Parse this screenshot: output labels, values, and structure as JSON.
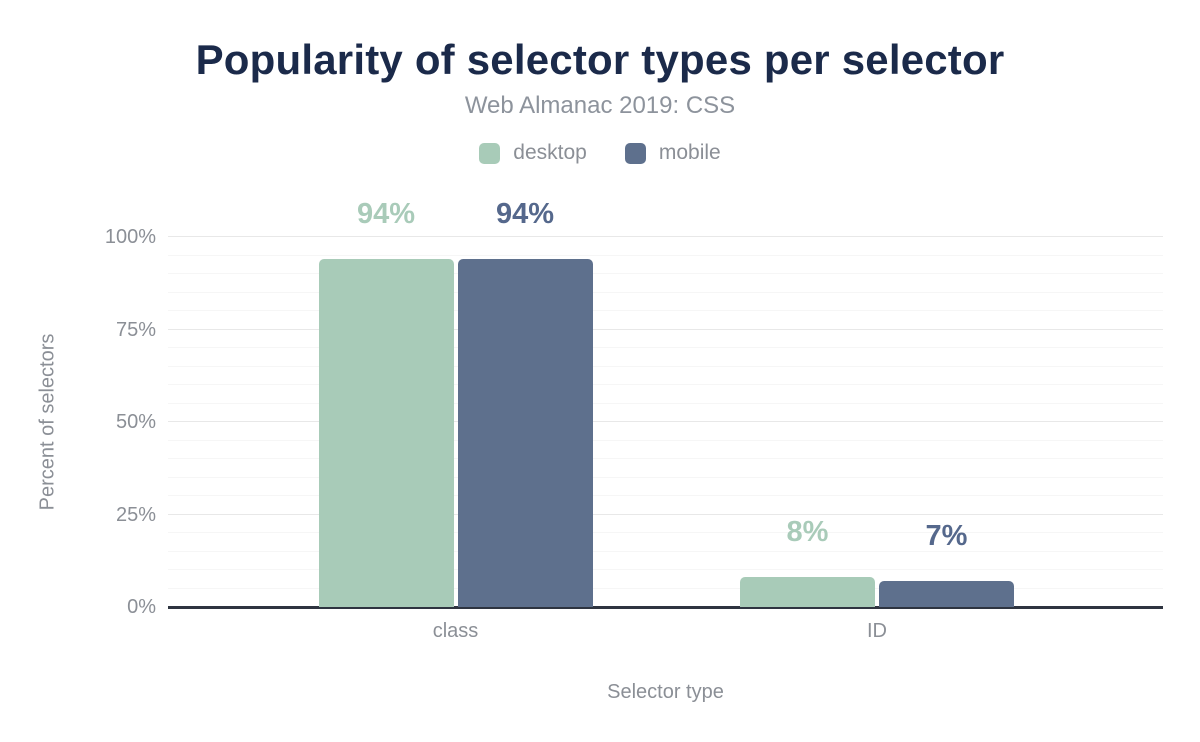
{
  "chart_data": {
    "type": "bar",
    "title": "Popularity of selector types per selector",
    "subtitle": "Web Almanac 2019: CSS",
    "categories": [
      "class",
      "ID"
    ],
    "series": [
      {
        "name": "desktop",
        "color": "#a8cbb8",
        "label_color": "#a9cbb9",
        "values": [
          94,
          8
        ],
        "data_labels": [
          "94%",
          "8%"
        ]
      },
      {
        "name": "mobile",
        "color": "#5e708d",
        "label_color": "#55688c",
        "values": [
          94,
          7
        ],
        "data_labels": [
          "94%",
          "7%"
        ]
      }
    ],
    "xlabel": "Selector type",
    "ylabel": "Percent of selectors",
    "ylim": [
      0,
      100
    ],
    "yticks": [
      {
        "value": 0,
        "label": "0%"
      },
      {
        "value": 25,
        "label": "25%"
      },
      {
        "value": 50,
        "label": "50%"
      },
      {
        "value": 75,
        "label": "75%"
      },
      {
        "value": 100,
        "label": "100%"
      }
    ],
    "minor_grid_step": 5,
    "legend_position": "top",
    "grid": true,
    "colors": {
      "title": "#1b2a4a",
      "muted_text": "#8b8f96",
      "axis_line": "#2e3440",
      "grid_major": "#e8e8e8",
      "grid_minor": "#f6f6f6",
      "background": "#ffffff"
    }
  }
}
